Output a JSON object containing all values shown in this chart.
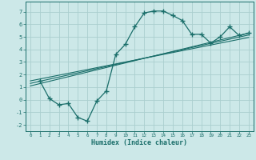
{
  "xlabel": "Humidex (Indice chaleur)",
  "bg_color": "#cce8e8",
  "grid_color": "#aacece",
  "line_color": "#1a6e6a",
  "xlim": [
    -0.5,
    23.5
  ],
  "ylim": [
    -2.5,
    7.8
  ],
  "xticks": [
    0,
    1,
    2,
    3,
    4,
    5,
    6,
    7,
    8,
    9,
    10,
    11,
    12,
    13,
    14,
    15,
    16,
    17,
    18,
    19,
    20,
    21,
    22,
    23
  ],
  "yticks": [
    -2,
    -1,
    0,
    1,
    2,
    3,
    4,
    5,
    6,
    7
  ],
  "curve_x": [
    1,
    2,
    3,
    4,
    5,
    6,
    7,
    8,
    9,
    10,
    11,
    12,
    13,
    14,
    15,
    16,
    17,
    18,
    19,
    20,
    21,
    22,
    23
  ],
  "curve_y": [
    1.5,
    0.1,
    -0.4,
    -0.3,
    -1.4,
    -1.7,
    -0.1,
    0.7,
    3.6,
    4.4,
    5.8,
    6.9,
    7.05,
    7.05,
    6.7,
    6.3,
    5.2,
    5.2,
    4.5,
    5.0,
    5.8,
    5.1,
    5.3
  ],
  "line1_x": [
    0,
    23
  ],
  "line1_y": [
    1.3,
    5.15
  ],
  "line2_x": [
    0,
    23
  ],
  "line2_y": [
    1.1,
    5.3
  ],
  "line3_x": [
    0,
    23
  ],
  "line3_y": [
    1.5,
    4.95
  ]
}
